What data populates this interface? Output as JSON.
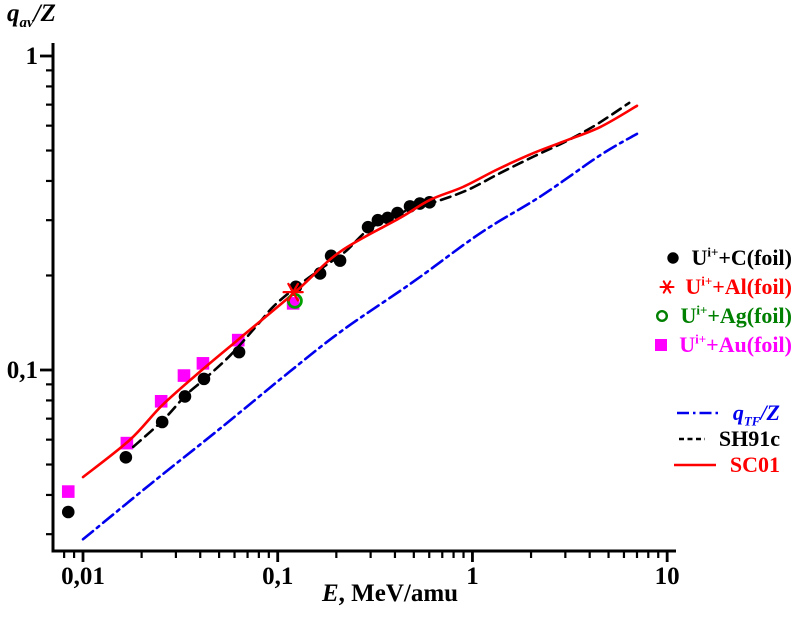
{
  "figure": {
    "background": "#ffffff"
  },
  "chart_data": {
    "type": "scatter",
    "x_scale": "log",
    "y_scale": "log",
    "grid": false,
    "title": {
      "base": "q",
      "sub": "av",
      "rest": "/Z"
    },
    "x_axis": {
      "label_em": "E",
      "label_rest": ", MeV/amu",
      "range": [
        0.007,
        10.4
      ],
      "major_ticks": [
        {
          "v": 0.01,
          "label": "0,01"
        },
        {
          "v": 0.1,
          "label": "0,1"
        },
        {
          "v": 1,
          "label": "1"
        },
        {
          "v": 10,
          "label": "10"
        }
      ],
      "minor_ticks": [
        0.008,
        0.009,
        0.02,
        0.03,
        0.04,
        0.05,
        0.06,
        0.07,
        0.08,
        0.09,
        0.2,
        0.3,
        0.4,
        0.5,
        0.6,
        0.7,
        0.8,
        0.9,
        2,
        3,
        4,
        5,
        6,
        7,
        8,
        9
      ]
    },
    "y_axis": {
      "range": [
        0.0266,
        1.1
      ],
      "major_ticks": [
        {
          "v": 1,
          "label": "1"
        },
        {
          "v": 0.1,
          "label": "0,1"
        }
      ],
      "minor_ticks": [
        0.9,
        0.8,
        0.7,
        0.6,
        0.5,
        0.4,
        0.3,
        0.2,
        0.09,
        0.08,
        0.07,
        0.06,
        0.05,
        0.04,
        0.03
      ]
    },
    "series": [
      {
        "name": "U(i+) + C(foil)",
        "marker": "circle",
        "color": "#000000",
        "points": [
          [
            0.0084,
            0.0353
          ],
          [
            0.0166,
            0.0527
          ],
          [
            0.0255,
            0.0683
          ],
          [
            0.0334,
            0.0824
          ],
          [
            0.0418,
            0.0937
          ],
          [
            0.0633,
            0.114
          ],
          [
            0.124,
            0.184
          ],
          [
            0.165,
            0.203
          ],
          [
            0.188,
            0.231
          ],
          [
            0.209,
            0.223
          ],
          [
            0.291,
            0.285
          ],
          [
            0.327,
            0.3
          ],
          [
            0.367,
            0.305
          ],
          [
            0.412,
            0.316
          ],
          [
            0.478,
            0.332
          ],
          [
            0.537,
            0.339
          ],
          [
            0.602,
            0.342
          ]
        ]
      },
      {
        "name": "U(i+) + Au(foil)",
        "marker": "square",
        "color": "#ff00ff",
        "points": [
          [
            0.0084,
            0.041
          ],
          [
            0.0168,
            0.0585
          ],
          [
            0.0252,
            0.0795
          ],
          [
            0.033,
            0.096
          ],
          [
            0.0413,
            0.105
          ],
          [
            0.0627,
            0.1245
          ],
          [
            0.12,
            0.163
          ]
        ]
      },
      {
        "name": "U(i+) + Ag(foil)",
        "marker": "open-circle",
        "color": "#00a000",
        "points": [
          [
            0.1225,
            0.166
          ]
        ]
      },
      {
        "name": "U(i+) + Al(foil)",
        "marker": "asterisk",
        "color": "#ff0000",
        "points": [
          [
            0.12,
            0.177
          ]
        ]
      }
    ],
    "curves": [
      {
        "name": "qTF/Z",
        "style": "dashdot",
        "color": "#0000ee",
        "points": [
          [
            0.01,
            0.0289
          ],
          [
            0.0221,
            0.0432
          ],
          [
            0.0506,
            0.0651
          ],
          [
            0.115,
            0.0987
          ],
          [
            0.216,
            0.134
          ],
          [
            0.494,
            0.1905
          ],
          [
            1.1,
            0.273
          ],
          [
            2.25,
            0.358
          ],
          [
            4.53,
            0.483
          ],
          [
            7.0,
            0.565
          ]
        ]
      },
      {
        "name": "SH91c",
        "style": "dashed",
        "color": "#000000",
        "points": [
          [
            0.0181,
            0.0569
          ],
          [
            0.0258,
            0.0693
          ],
          [
            0.0338,
            0.0832
          ],
          [
            0.0422,
            0.0937
          ],
          [
            0.0576,
            0.112
          ],
          [
            0.0793,
            0.14
          ],
          [
            0.0957,
            0.16
          ],
          [
            0.125,
            0.184
          ],
          [
            0.174,
            0.214
          ],
          [
            0.222,
            0.238
          ],
          [
            0.299,
            0.283
          ],
          [
            0.436,
            0.318
          ],
          [
            0.644,
            0.343
          ],
          [
            0.95,
            0.375
          ],
          [
            1.4,
            0.425
          ],
          [
            2.07,
            0.479
          ],
          [
            3.01,
            0.534
          ],
          [
            4.3,
            0.603
          ],
          [
            6.38,
            0.709
          ]
        ]
      },
      {
        "name": "SC01",
        "style": "solid",
        "color": "#ff0000",
        "points": [
          [
            0.01,
            0.0456
          ],
          [
            0.0174,
            0.0599
          ],
          [
            0.0255,
            0.0772
          ],
          [
            0.0408,
            0.1
          ],
          [
            0.0627,
            0.125
          ],
          [
            0.124,
            0.178
          ],
          [
            0.209,
            0.238
          ],
          [
            0.425,
            0.305
          ],
          [
            0.605,
            0.348
          ],
          [
            0.896,
            0.383
          ],
          [
            1.34,
            0.435
          ],
          [
            1.98,
            0.486
          ],
          [
            2.93,
            0.534
          ],
          [
            4.53,
            0.594
          ],
          [
            7.0,
            0.694
          ]
        ]
      }
    ]
  },
  "legend": {
    "markers": [
      {
        "marker": "circle",
        "color": "#000000",
        "base": "U",
        "sup": "i+",
        "rest": "+C(foil)"
      },
      {
        "marker": "asterisk",
        "color": "#ff0000",
        "base": "U",
        "sup": "i+",
        "rest": "+Al(foil)"
      },
      {
        "marker": "open-circle",
        "color": "#008000",
        "base": "U",
        "sup": "i+",
        "rest": "+Ag(foil)"
      },
      {
        "marker": "square",
        "color": "#ff00ff",
        "base": "U",
        "sup": "i+",
        "rest": "+Au(foil)"
      }
    ],
    "lines": [
      {
        "style": "dashdot",
        "color": "#0000ee",
        "base": "q",
        "sub": "TF",
        "rest": "/Z"
      },
      {
        "style": "dashed",
        "color": "#000000",
        "label": "SH91c"
      },
      {
        "style": "solid",
        "color": "#ff0000",
        "label": "SC01"
      }
    ]
  }
}
